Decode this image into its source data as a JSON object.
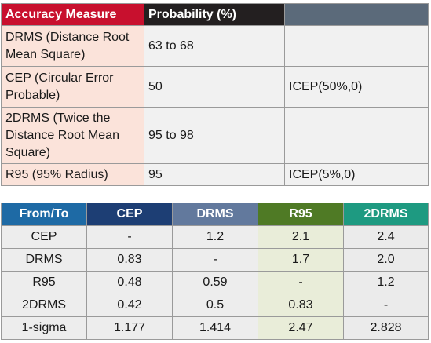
{
  "accuracy_table": {
    "headers": [
      "Accuracy Measure",
      "Probability (%)",
      ""
    ],
    "rows": [
      {
        "measure": "DRMS (Distance Root Mean Square)",
        "probability": "63 to 68",
        "extra": ""
      },
      {
        "measure": "CEP (Circular Error Probable)",
        "probability": "50",
        "extra": "ICEP(50%,0)"
      },
      {
        "measure": "2DRMS (Twice the Distance Root Mean Square)",
        "probability": "95 to 98",
        "extra": ""
      },
      {
        "measure": "R95 (95% Radius)",
        "probability": "95",
        "extra": "ICEP(5%,0)"
      }
    ]
  },
  "conversion_table": {
    "headers": [
      "From/To",
      "CEP",
      "DRMS",
      "R95",
      "2DRMS"
    ],
    "rows": [
      {
        "label": "CEP",
        "values": [
          "-",
          "1.2",
          "2.1",
          "2.4"
        ]
      },
      {
        "label": "DRMS",
        "values": [
          "0.83",
          "-",
          "1.7",
          "2.0"
        ]
      },
      {
        "label": "R95",
        "values": [
          "0.48",
          "0.59",
          "-",
          "1.2"
        ]
      },
      {
        "label": "2DRMS",
        "values": [
          "0.42",
          "0.5",
          "0.83",
          "-"
        ]
      },
      {
        "label": "1-sigma",
        "values": [
          "1.177",
          "1.414",
          "2.47",
          "2.828"
        ]
      }
    ]
  },
  "colors": {
    "header_measure": "#c8102e",
    "header_probability": "#231f20",
    "header_blank": "#5b6a7a",
    "measure_cell_bg": "#fbe3da",
    "from_header": "#1e6aa5",
    "cep_header": "#1d3e74",
    "drms_header": "#62799d",
    "r95_header": "#4f7a25",
    "twodrms_header": "#1e9a81"
  }
}
